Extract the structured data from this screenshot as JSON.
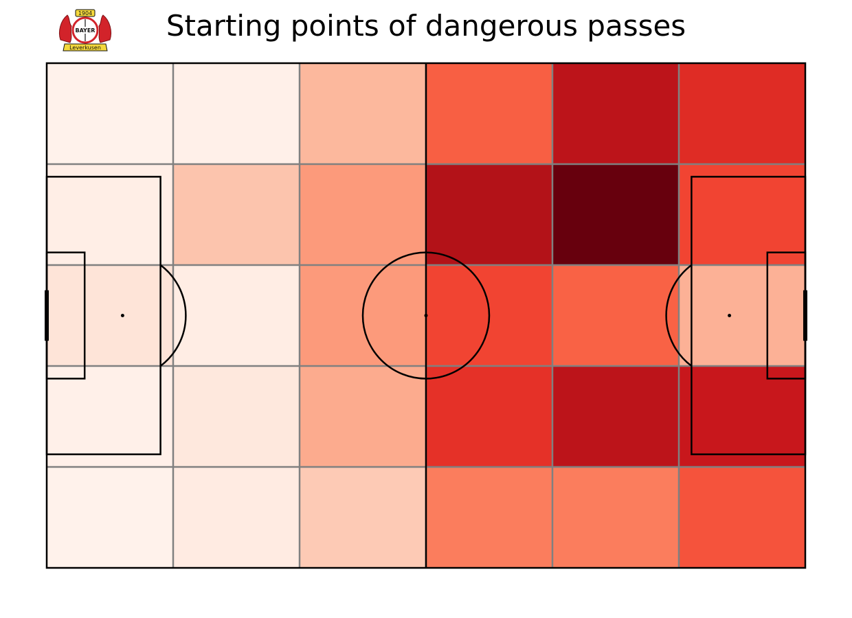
{
  "title": "Starting points of dangerous passes",
  "logo": {
    "year": "1904",
    "word": "BAYER",
    "banner": "Leverkusen",
    "colors": {
      "red": "#d2232a",
      "yellow": "#f4d83c",
      "black": "#111111"
    }
  },
  "chart_data": {
    "type": "heatmap",
    "title": "Starting points of dangerous passes",
    "xlabel": "",
    "ylabel": "",
    "pitch": {
      "length": 120,
      "width": 80,
      "units": "statsbomb"
    },
    "bins": {
      "columns": 6,
      "rows": 5
    },
    "colormap": "Reds",
    "scale": [
      0,
      1
    ],
    "grid_line_color": "#808080",
    "values": [
      [
        0.02,
        0.03,
        0.26,
        0.53,
        0.8,
        0.68
      ],
      [
        0.04,
        0.22,
        0.35,
        0.83,
        1.0,
        0.6
      ],
      [
        0.1,
        0.05,
        0.35,
        0.6,
        0.52,
        0.28
      ],
      [
        0.03,
        0.08,
        0.3,
        0.66,
        0.8,
        0.76
      ],
      [
        0.02,
        0.06,
        0.2,
        0.44,
        0.44,
        0.56
      ]
    ]
  }
}
